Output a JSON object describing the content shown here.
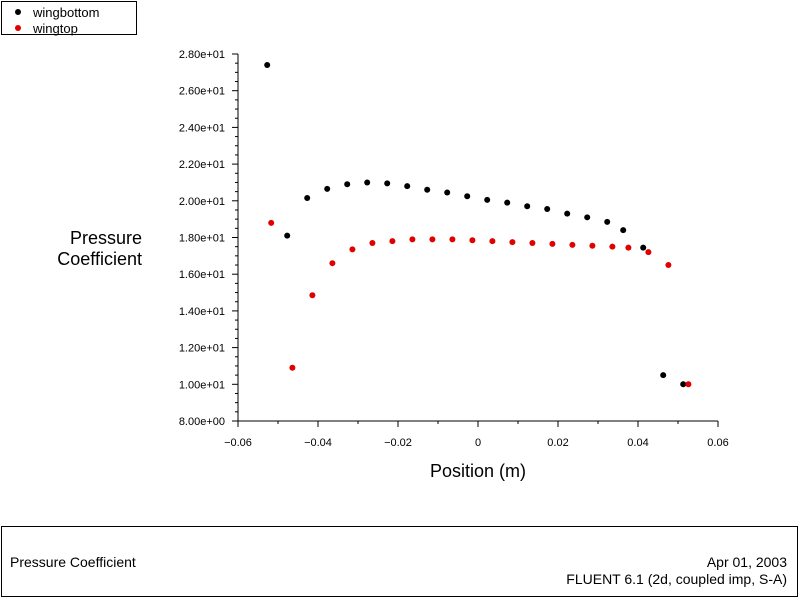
{
  "legend": {
    "series": [
      {
        "label": "wingbottom",
        "color": "#000000"
      },
      {
        "label": "wingtop",
        "color": "#e00000"
      }
    ]
  },
  "footer": {
    "plot_name": "Pressure Coefficient",
    "date": "Apr 01, 2003",
    "solver": "FLUENT 6.1 (2d, coupled imp, S-A)"
  },
  "chart_data": {
    "type": "scatter",
    "title": "",
    "xlabel": "Position (m)",
    "ylabel_lines": [
      "Pressure",
      "Coefficient"
    ],
    "xlim": [
      -0.06,
      0.06
    ],
    "ylim": [
      8.0,
      28.0
    ],
    "x_ticks": [
      -0.06,
      -0.04,
      -0.02,
      0,
      0.02,
      0.04,
      0.06
    ],
    "x_tick_labels": [
      "−0.06",
      "−0.04",
      "−0.02",
      "0",
      "0.02",
      "0.04",
      "0.06"
    ],
    "y_ticks": [
      8,
      10,
      12,
      14,
      16,
      18,
      20,
      22,
      24,
      26,
      28
    ],
    "y_tick_labels": [
      "8.00e+00",
      "1.00e+01",
      "1.20e+01",
      "1.40e+01",
      "1.60e+01",
      "1.80e+01",
      "2.00e+01",
      "2.20e+01",
      "2.40e+01",
      "2.60e+01",
      "2.80e+01"
    ],
    "grid": false,
    "legend_position": "top-left",
    "series": [
      {
        "name": "wingbottom",
        "color": "#000000",
        "x": [
          -0.0527,
          -0.0477,
          -0.0427,
          -0.0377,
          -0.0327,
          -0.0277,
          -0.0227,
          -0.0177,
          -0.0127,
          -0.0077,
          -0.0027,
          0.0023,
          0.0073,
          0.0123,
          0.0173,
          0.0223,
          0.0273,
          0.0323,
          0.0363,
          0.0413,
          0.0463,
          0.0513
        ],
        "y": [
          27.4,
          18.1,
          20.15,
          20.65,
          20.9,
          21.0,
          20.95,
          20.8,
          20.6,
          20.45,
          20.25,
          20.05,
          19.9,
          19.7,
          19.55,
          19.3,
          19.1,
          18.85,
          18.4,
          17.45,
          10.5,
          10.0
        ]
      },
      {
        "name": "wingtop",
        "color": "#e00000",
        "x": [
          -0.0517,
          -0.0464,
          -0.0414,
          -0.0364,
          -0.0314,
          -0.0264,
          -0.0214,
          -0.0164,
          -0.0114,
          -0.0064,
          -0.0014,
          0.0036,
          0.0086,
          0.0136,
          0.0186,
          0.0236,
          0.0286,
          0.0336,
          0.0376,
          0.0426,
          0.0476,
          0.0526
        ],
        "y": [
          18.8,
          10.9,
          14.85,
          16.6,
          17.35,
          17.7,
          17.8,
          17.9,
          17.9,
          17.9,
          17.85,
          17.8,
          17.75,
          17.7,
          17.65,
          17.6,
          17.55,
          17.5,
          17.45,
          17.2,
          16.5,
          10.0
        ]
      }
    ]
  }
}
